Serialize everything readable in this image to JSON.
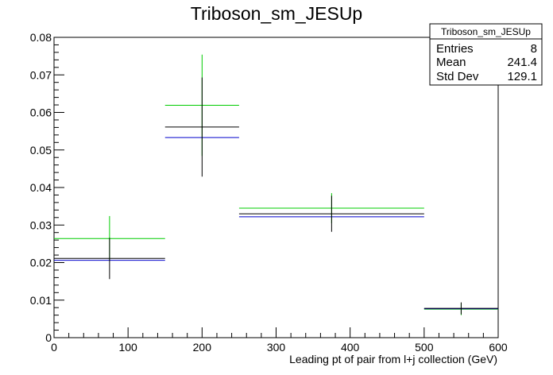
{
  "chart_data": {
    "type": "histogram",
    "title": "Triboson_sm_JESUp",
    "xlabel": "Leading pt of pair from l+j collection (GeV)",
    "ylabel": "",
    "xlim": [
      0,
      600
    ],
    "ylim": [
      0,
      0.08
    ],
    "x_ticks": [
      "0",
      "100",
      "200",
      "300",
      "400",
      "500",
      "600"
    ],
    "y_ticks": [
      "0",
      "0.01",
      "0.02",
      "0.03",
      "0.04",
      "0.05",
      "0.06",
      "0.07",
      "0.08"
    ],
    "bins": [
      {
        "x_low": 0,
        "x_high": 150,
        "x_center": 75
      },
      {
        "x_low": 150,
        "x_high": 250,
        "x_center": 200
      },
      {
        "x_low": 250,
        "x_high": 500,
        "x_center": 375
      },
      {
        "x_low": 500,
        "x_high": 600,
        "x_center": 550
      }
    ],
    "series": [
      {
        "color": "#00cc00",
        "values": [
          0.0264,
          0.0619,
          0.0345,
          0.0076
        ],
        "errors": [
          0.006,
          0.0135,
          0.004,
          0.0016
        ]
      },
      {
        "color": "#0000cc",
        "values": [
          0.0206,
          0.0533,
          0.0322,
          0.0077
        ],
        "errors": [
          0,
          0,
          0,
          0
        ]
      },
      {
        "color": "#000000",
        "values": [
          0.0211,
          0.0561,
          0.033,
          0.0078
        ],
        "errors": [
          0.0055,
          0.0132,
          0.0048,
          0.0016
        ]
      }
    ],
    "stats": {
      "name": "Triboson_sm_JESUp",
      "rows": [
        {
          "label": "Entries",
          "value": "8"
        },
        {
          "label": "Mean",
          "value": "241.4"
        },
        {
          "label": "Std Dev",
          "value": "129.1"
        }
      ]
    }
  }
}
